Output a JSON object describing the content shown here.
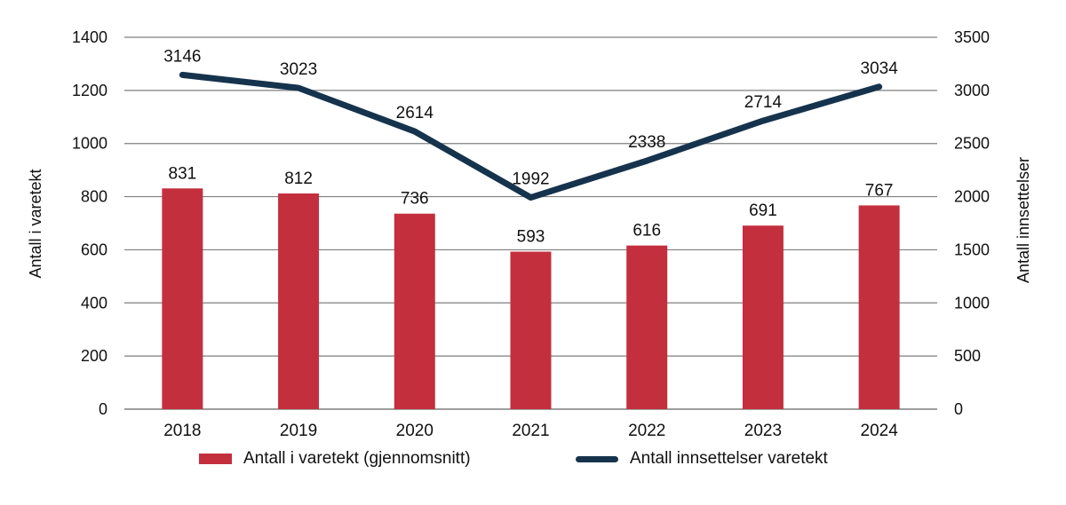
{
  "chart_data": {
    "type": "bar",
    "subtype": "combo-bar-line",
    "title": "",
    "categories": [
      "2018",
      "2019",
      "2020",
      "2021",
      "2022",
      "2023",
      "2024"
    ],
    "series": [
      {
        "name": "Antall i varetekt (gjennomsnitt)",
        "type": "bar",
        "axis": "left",
        "color": "#c42f3e",
        "values": [
          831,
          812,
          736,
          593,
          616,
          691,
          767
        ]
      },
      {
        "name": "Antall innsettelser varetekt",
        "type": "line",
        "axis": "right",
        "color": "#16334d",
        "values": [
          3146,
          3023,
          2614,
          1992,
          2338,
          2714,
          3034
        ]
      }
    ],
    "left_axis": {
      "label": "Antall i varetekt",
      "min": 0,
      "max": 1400,
      "step": 200,
      "ticks": [
        "0",
        "200",
        "400",
        "600",
        "800",
        "1000",
        "1200",
        "1400"
      ]
    },
    "right_axis": {
      "label": "Antall innsettelser",
      "min": 0,
      "max": 3500,
      "step": 500,
      "ticks": [
        "0",
        "500",
        "1000",
        "1500",
        "2000",
        "2500",
        "3000",
        "3500"
      ]
    },
    "grid": true,
    "gridline_color": "#7f7f7f",
    "text_color": "#111111",
    "legend_position": "bottom",
    "data_labels": true
  }
}
